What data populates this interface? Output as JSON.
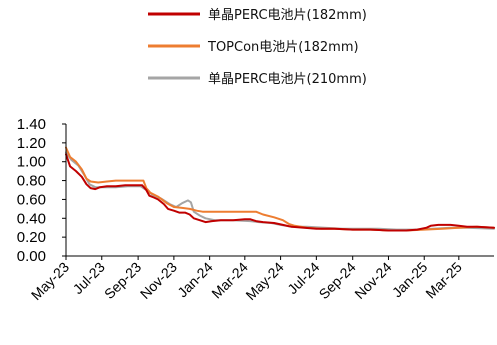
{
  "chart_data": {
    "type": "line",
    "title": "",
    "xlabel": "",
    "ylabel": "",
    "ylim": [
      0,
      1.4
    ],
    "y_ticks": [
      "0.00",
      "0.20",
      "0.40",
      "0.60",
      "0.80",
      "1.00",
      "1.20",
      "1.40"
    ],
    "x_range": [
      "2023-05-01",
      "2025-04-30"
    ],
    "x_ticks": [
      {
        "date": "2023-05-01",
        "label": "May-23"
      },
      {
        "date": "2023-07-01",
        "label": "Jul-23"
      },
      {
        "date": "2023-09-01",
        "label": "Sep-23"
      },
      {
        "date": "2023-11-01",
        "label": "Nov-23"
      },
      {
        "date": "2024-01-01",
        "label": "Jan-24"
      },
      {
        "date": "2024-03-01",
        "label": "Mar-24"
      },
      {
        "date": "2024-05-01",
        "label": "May-24"
      },
      {
        "date": "2024-07-01",
        "label": "Jul-24"
      },
      {
        "date": "2024-09-01",
        "label": "Sep-24"
      },
      {
        "date": "2024-11-01",
        "label": "Nov-24"
      },
      {
        "date": "2025-01-01",
        "label": "Jan-25"
      },
      {
        "date": "2025-03-01",
        "label": "Mar-25"
      }
    ],
    "grid": false,
    "legend": "top",
    "series": [
      {
        "name": "单晶PERC电池片(182mm)",
        "color": "#c00000",
        "points": [
          [
            "2023-05-01",
            1.08
          ],
          [
            "2023-05-08",
            0.95
          ],
          [
            "2023-05-18",
            0.9
          ],
          [
            "2023-05-28",
            0.84
          ],
          [
            "2023-06-05",
            0.76
          ],
          [
            "2023-06-12",
            0.72
          ],
          [
            "2023-06-20",
            0.71
          ],
          [
            "2023-06-28",
            0.73
          ],
          [
            "2023-07-10",
            0.74
          ],
          [
            "2023-07-25",
            0.74
          ],
          [
            "2023-08-10",
            0.75
          ],
          [
            "2023-08-25",
            0.75
          ],
          [
            "2023-09-08",
            0.75
          ],
          [
            "2023-09-15",
            0.7
          ],
          [
            "2023-09-20",
            0.64
          ],
          [
            "2023-09-28",
            0.62
          ],
          [
            "2023-10-05",
            0.6
          ],
          [
            "2023-10-15",
            0.55
          ],
          [
            "2023-10-22",
            0.5
          ],
          [
            "2023-11-01",
            0.48
          ],
          [
            "2023-11-10",
            0.46
          ],
          [
            "2023-11-20",
            0.46
          ],
          [
            "2023-11-28",
            0.44
          ],
          [
            "2023-12-05",
            0.4
          ],
          [
            "2023-12-15",
            0.38
          ],
          [
            "2023-12-25",
            0.36
          ],
          [
            "2024-01-05",
            0.37
          ],
          [
            "2024-01-20",
            0.38
          ],
          [
            "2024-02-10",
            0.38
          ],
          [
            "2024-03-01",
            0.39
          ],
          [
            "2024-03-10",
            0.39
          ],
          [
            "2024-03-20",
            0.37
          ],
          [
            "2024-04-01",
            0.36
          ],
          [
            "2024-04-20",
            0.35
          ],
          [
            "2024-05-05",
            0.33
          ],
          [
            "2024-05-20",
            0.31
          ],
          [
            "2024-06-10",
            0.3
          ],
          [
            "2024-07-01",
            0.29
          ],
          [
            "2024-08-01",
            0.29
          ],
          [
            "2024-09-01",
            0.28
          ],
          [
            "2024-10-01",
            0.28
          ],
          [
            "2024-11-01",
            0.27
          ],
          [
            "2024-12-01",
            0.27
          ],
          [
            "2024-12-20",
            0.28
          ],
          [
            "2025-01-05",
            0.3
          ],
          [
            "2025-01-12",
            0.32
          ],
          [
            "2025-01-25",
            0.33
          ],
          [
            "2025-02-15",
            0.33
          ],
          [
            "2025-03-01",
            0.32
          ],
          [
            "2025-03-15",
            0.31
          ],
          [
            "2025-04-01",
            0.31
          ],
          [
            "2025-04-30",
            0.3
          ]
        ]
      },
      {
        "name": "TOPCon电池片(182mm)",
        "color": "#ed7d31",
        "points": [
          [
            "2023-05-01",
            1.15
          ],
          [
            "2023-05-08",
            1.05
          ],
          [
            "2023-05-18",
            1.0
          ],
          [
            "2023-05-28",
            0.92
          ],
          [
            "2023-06-05",
            0.82
          ],
          [
            "2023-06-12",
            0.79
          ],
          [
            "2023-06-25",
            0.78
          ],
          [
            "2023-07-10",
            0.79
          ],
          [
            "2023-07-25",
            0.8
          ],
          [
            "2023-08-15",
            0.8
          ],
          [
            "2023-09-05",
            0.8
          ],
          [
            "2023-09-10",
            0.8
          ],
          [
            "2023-09-15",
            0.72
          ],
          [
            "2023-09-22",
            0.67
          ],
          [
            "2023-10-05",
            0.63
          ],
          [
            "2023-10-20",
            0.56
          ],
          [
            "2023-11-01",
            0.52
          ],
          [
            "2023-11-15",
            0.51
          ],
          [
            "2023-11-28",
            0.5
          ],
          [
            "2023-12-10",
            0.48
          ],
          [
            "2023-12-20",
            0.47
          ],
          [
            "2024-01-10",
            0.47
          ],
          [
            "2024-02-10",
            0.47
          ],
          [
            "2024-03-10",
            0.47
          ],
          [
            "2024-03-20",
            0.47
          ],
          [
            "2024-04-01",
            0.44
          ],
          [
            "2024-04-20",
            0.41
          ],
          [
            "2024-05-05",
            0.38
          ],
          [
            "2024-05-15",
            0.34
          ],
          [
            "2024-05-25",
            0.32
          ],
          [
            "2024-06-15",
            0.3
          ],
          [
            "2024-07-10",
            0.29
          ],
          [
            "2024-08-01",
            0.29
          ],
          [
            "2024-09-01",
            0.28
          ],
          [
            "2024-10-01",
            0.28
          ],
          [
            "2024-11-01",
            0.27
          ],
          [
            "2024-12-01",
            0.27
          ],
          [
            "2025-01-01",
            0.28
          ],
          [
            "2025-02-01",
            0.29
          ],
          [
            "2025-03-01",
            0.3
          ],
          [
            "2025-04-01",
            0.31
          ],
          [
            "2025-04-30",
            0.3
          ]
        ]
      },
      {
        "name": "单晶PERC电池片(210mm)",
        "color": "#a5a5a5",
        "points": [
          [
            "2023-05-01",
            1.1
          ],
          [
            "2023-05-10",
            1.02
          ],
          [
            "2023-05-22",
            0.96
          ],
          [
            "2023-06-01",
            0.86
          ],
          [
            "2023-06-10",
            0.76
          ],
          [
            "2023-06-20",
            0.73
          ],
          [
            "2023-07-05",
            0.73
          ],
          [
            "2023-07-25",
            0.73
          ],
          [
            "2023-08-15",
            0.74
          ],
          [
            "2023-09-05",
            0.74
          ],
          [
            "2023-09-15",
            0.7
          ],
          [
            "2023-09-25",
            0.65
          ],
          [
            "2023-10-10",
            0.61
          ],
          [
            "2023-10-25",
            0.55
          ],
          [
            "2023-11-05",
            0.52
          ],
          [
            "2023-11-15",
            0.56
          ],
          [
            "2023-11-25",
            0.59
          ],
          [
            "2023-11-30",
            0.57
          ],
          [
            "2023-12-05",
            0.47
          ],
          [
            "2023-12-15",
            0.43
          ],
          [
            "2023-12-25",
            0.4
          ],
          [
            "2024-01-10",
            0.38
          ],
          [
            "2024-02-10",
            0.38
          ],
          [
            "2024-03-10",
            0.37
          ],
          [
            "2024-03-25",
            0.36
          ],
          [
            "2024-04-15",
            0.35
          ],
          [
            "2024-05-01",
            0.33
          ],
          [
            "2024-05-20",
            0.31
          ],
          [
            "2024-06-15",
            0.31
          ],
          [
            "2024-07-15",
            0.3
          ],
          [
            "2024-08-15",
            0.29
          ],
          [
            "2024-09-15",
            0.29
          ],
          [
            "2024-10-15",
            0.29
          ],
          [
            "2024-11-15",
            0.28
          ],
          [
            "2024-12-15",
            0.28
          ],
          [
            "2025-01-15",
            0.29
          ],
          [
            "2025-02-15",
            0.3
          ],
          [
            "2025-03-15",
            0.3
          ],
          [
            "2025-04-30",
            0.29
          ]
        ]
      }
    ]
  }
}
